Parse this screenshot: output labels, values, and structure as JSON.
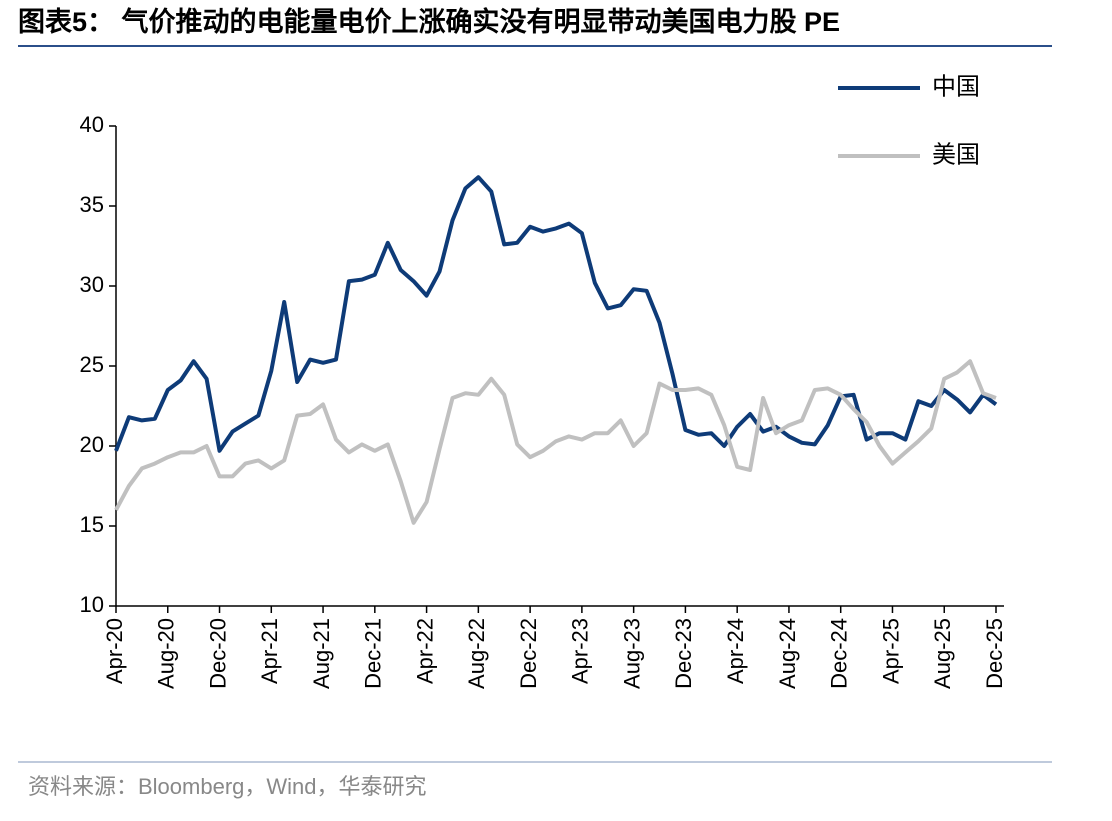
{
  "chart_data": {
    "type": "line",
    "title": "图表5：  气价推动的电能量电价上涨确实没有明显带动美国电力股 PE",
    "source": "资料来源：Bloomberg，Wind，华泰研究",
    "categories": [
      "Apr-20",
      null,
      null,
      null,
      "Aug-20",
      null,
      null,
      null,
      "Dec-20",
      null,
      null,
      null,
      "Apr-21",
      null,
      null,
      null,
      "Aug-21",
      null,
      null,
      null,
      "Dec-21",
      null,
      null,
      null,
      "Apr-22",
      null,
      null,
      null,
      "Aug-22",
      null,
      null,
      null,
      "Dec-22",
      null,
      null,
      null,
      "Apr-23",
      null,
      null,
      null,
      "Aug-23",
      null,
      null,
      null,
      "Dec-23",
      null,
      null,
      null,
      "Apr-24",
      null,
      null,
      null,
      "Aug-24",
      null,
      null,
      null,
      "Dec-24",
      null,
      null,
      null,
      "Apr-25",
      null,
      null,
      null,
      "Aug-25",
      null,
      null,
      null,
      "Dec-25"
    ],
    "series": [
      {
        "name": "中国",
        "color": "#0e3b78",
        "values": [
          19.7,
          21.8,
          21.6,
          21.7,
          23.5,
          24.1,
          25.3,
          24.2,
          19.7,
          20.9,
          21.4,
          21.9,
          24.7,
          29.0,
          24.0,
          25.4,
          25.2,
          25.4,
          30.3,
          30.4,
          30.7,
          32.7,
          31.0,
          30.3,
          29.4,
          30.9,
          34.1,
          36.1,
          36.8,
          35.9,
          32.6,
          32.7,
          33.7,
          33.4,
          33.6,
          33.9,
          33.3,
          30.2,
          28.6,
          28.8,
          29.8,
          29.7,
          27.7,
          24.5,
          21.0,
          20.7,
          20.8,
          20.0,
          21.2,
          22.0,
          20.9,
          21.2,
          20.6,
          20.2,
          20.1,
          21.3,
          23.1,
          23.2,
          20.4,
          20.8,
          20.8,
          20.4,
          22.8,
          22.5,
          23.5,
          22.9,
          22.1,
          23.2,
          22.6
        ]
      },
      {
        "name": "美国",
        "color": "#c0c0c0",
        "values": [
          16.0,
          17.5,
          18.6,
          18.9,
          19.3,
          19.6,
          19.6,
          20.0,
          18.1,
          18.1,
          18.9,
          19.1,
          18.6,
          19.1,
          21.9,
          22.0,
          22.6,
          20.4,
          19.6,
          20.1,
          19.7,
          20.1,
          17.8,
          15.2,
          16.5,
          19.8,
          23.0,
          23.3,
          23.2,
          24.2,
          23.2,
          20.1,
          19.3,
          19.7,
          20.3,
          20.6,
          20.4,
          20.8,
          20.8,
          21.6,
          20.0,
          20.8,
          23.9,
          23.5,
          23.5,
          23.6,
          23.2,
          21.3,
          18.7,
          18.5,
          23.0,
          20.8,
          21.3,
          21.6,
          23.5,
          23.6,
          23.2,
          22.3,
          21.5,
          20.0,
          18.9,
          19.6,
          20.3,
          21.1,
          24.2,
          24.6,
          25.3,
          23.3,
          23.0
        ]
      }
    ],
    "ylim": [
      10,
      40
    ],
    "yticks": [
      10,
      15,
      20,
      25,
      30,
      35,
      40
    ],
    "grid": false,
    "legend": "upper right"
  }
}
